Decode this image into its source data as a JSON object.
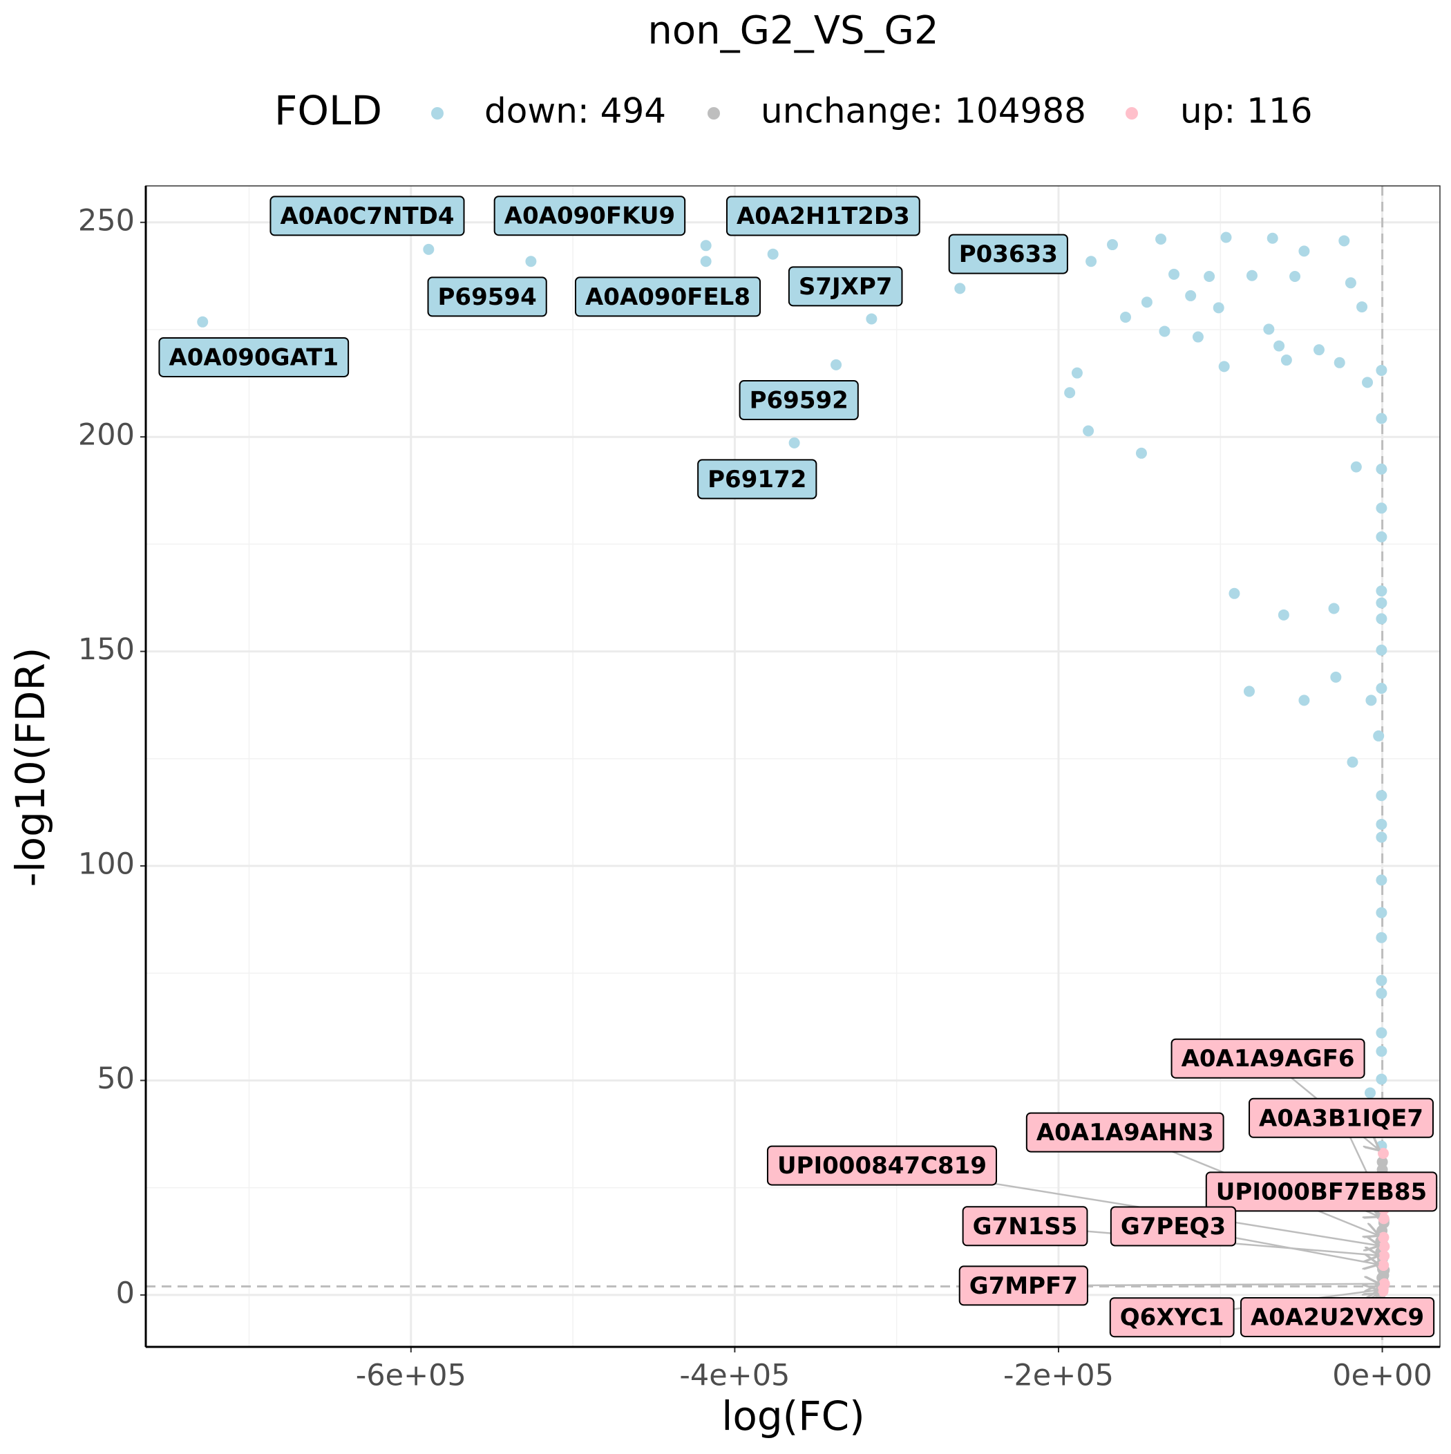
{
  "chart_data": {
    "type": "scatter",
    "title": "non_G2_VS_G2",
    "x_label": "log(FC)",
    "y_label": "-log10(FDR)",
    "legend_title": "FOLD",
    "legend": "top",
    "grid": true,
    "xlim": [
      -763800,
      35600
    ],
    "ylim": [
      -12.1,
      258.5
    ],
    "xticks": [
      {
        "value": -600000,
        "label": "-6e+05"
      },
      {
        "value": -400000,
        "label": "-4e+05"
      },
      {
        "value": -200000,
        "label": "-2e+05"
      },
      {
        "value": 0,
        "label": "0e+00"
      }
    ],
    "yticks": [
      0,
      50,
      100,
      150,
      200,
      250
    ],
    "hline": 2,
    "vline": 0,
    "series": [
      {
        "name": "down: 494",
        "color": "#add8e6",
        "x": [
          -728700,
          -589100,
          -525900,
          -417800,
          -417800,
          -376400,
          -315500,
          -337400,
          -363200,
          -260900,
          -193100,
          -188500,
          -181600,
          -179900,
          -166700,
          -158600,
          -148800,
          -145400,
          -136800,
          -134500,
          -128700,
          -118400,
          -113800,
          -106900,
          -101100,
          -96500,
          -97700,
          -91400,
          -82200,
          -80500,
          -70100,
          -67800,
          -63800,
          -60900,
          -59200,
          -54000,
          -48300,
          -48300,
          -39100,
          -29900,
          -28700,
          -26400,
          -23600,
          -19500,
          -18400,
          -16100,
          -12600,
          -9200,
          -6900,
          -2300,
          -500,
          -500,
          -500,
          -500,
          -500,
          -500,
          -500,
          -500,
          -500,
          -500,
          -500,
          -500,
          -500,
          -500,
          -500,
          -500,
          -500,
          -500,
          -500,
          -500,
          -500,
          -500,
          -500,
          -7500
        ],
        "values": [
          226.8,
          243.7,
          240.9,
          244.6,
          240.9,
          242.6,
          227.5,
          216.8,
          198.6,
          234.6,
          210.3,
          214.9,
          201.4,
          240.9,
          244.8,
          227.9,
          196.2,
          231.4,
          246.1,
          224.6,
          237.9,
          232.9,
          223.3,
          237.4,
          230.1,
          246.5,
          216.4,
          163.5,
          140.7,
          237.6,
          225.1,
          246.3,
          221.2,
          158.5,
          217.9,
          237.4,
          243.3,
          138.6,
          220.3,
          160.0,
          144.0,
          217.3,
          245.7,
          235.9,
          124.2,
          193.0,
          230.3,
          212.7,
          138.6,
          130.3,
          215.5,
          204.3,
          192.5,
          183.4,
          176.7,
          164.1,
          161.3,
          157.6,
          150.3,
          141.4,
          116.4,
          109.7,
          106.7,
          96.7,
          89.1,
          83.3,
          73.3,
          70.3,
          61.1,
          56.8,
          50.3,
          41.6,
          34.7,
          47.1
        ],
        "point_labels": [
          "A0A090GAT1",
          "A0A0C7NTD4",
          "P69594",
          "A0A090FKU9",
          "A0A090FEL8",
          "A0A2H1T2D3",
          "S7JXP7",
          "P69592",
          "P69172",
          "P03633",
          null,
          null,
          null,
          null,
          null,
          null,
          null,
          null,
          null,
          null,
          null,
          null,
          null,
          null,
          null,
          null,
          null,
          null,
          null,
          null,
          null,
          null,
          null,
          null,
          null,
          null,
          null,
          null,
          null,
          null,
          null,
          null,
          null,
          null,
          null,
          null,
          null,
          null,
          null,
          null,
          null,
          null,
          null,
          null,
          null,
          null,
          null,
          null,
          null,
          null,
          null,
          null,
          null,
          null,
          null,
          null,
          null,
          null,
          null,
          null,
          null,
          null,
          null,
          null
        ]
      },
      {
        "name": "unchange: 104988",
        "color": "#bebebe",
        "x": [
          -1200,
          -800,
          -400,
          0,
          400,
          800,
          1200,
          -600,
          200,
          -1000,
          600,
          0,
          -200,
          1000,
          -800,
          400,
          0,
          -400,
          800,
          0,
          -600,
          600,
          -200,
          200,
          0,
          -1000,
          1000,
          0
        ],
        "values": [
          0.2,
          0.8,
          1.5,
          2.5,
          3.4,
          4.6,
          5.8,
          7.1,
          8.5,
          10.0,
          11.6,
          13.3,
          15.0,
          16.8,
          18.7,
          20.6,
          22.6,
          24.7,
          26.9,
          29.2,
          1.0,
          2.0,
          4.0,
          6.0,
          9.0,
          12.5,
          17.5,
          31.0
        ]
      },
      {
        "name": "up: 116",
        "color": "#ffc0cb",
        "x": [
          600,
          1000,
          800,
          1200,
          900,
          1100,
          700,
          1300,
          500,
          400
        ],
        "values": [
          33.0,
          20.0,
          13.4,
          11.3,
          17.8,
          9.1,
          6.9,
          2.6,
          1.3,
          0.9
        ],
        "point_labels": [
          "A0A1A9AGF6",
          "A0A3B1IQE7",
          "A0A1A9AHN3",
          "UPI000847C819",
          "UPI000BF7EB85",
          "G7N1S5",
          "G7PEQ3",
          "G7MPF7",
          "Q6XYC1",
          "A0A2U2VXC9"
        ]
      }
    ]
  }
}
